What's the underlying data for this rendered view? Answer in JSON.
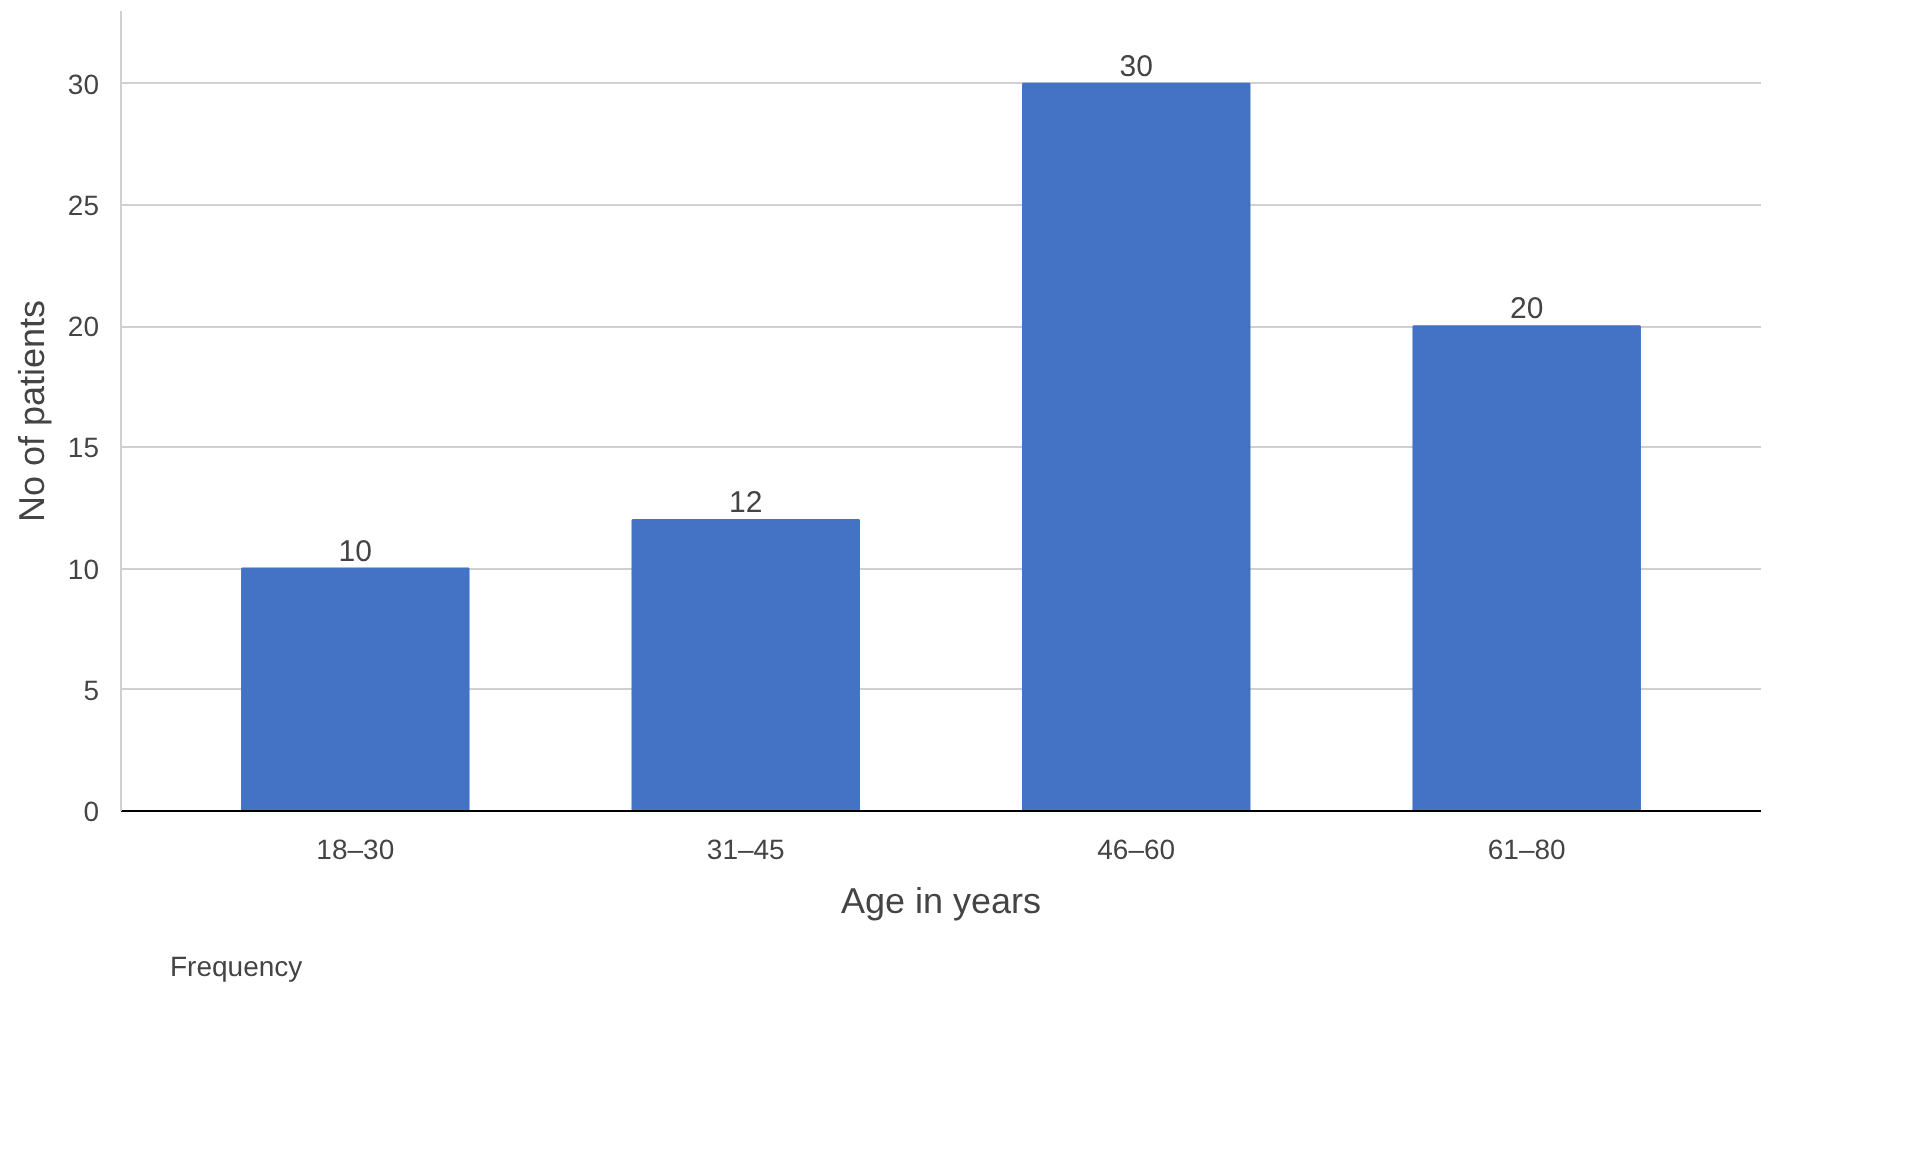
{
  "chart_data": {
    "type": "bar",
    "categories": [
      "18–30",
      "31–45",
      "46–60",
      "61–80"
    ],
    "series": [
      {
        "name": "Frequency",
        "color": "#4472c4",
        "values": [
          10,
          12,
          30,
          20
        ]
      }
    ],
    "xlabel": "Age in years",
    "ylabel": "No of patients",
    "ylim": [
      0,
      33
    ],
    "yticks": [
      0,
      5,
      10,
      15,
      20,
      25,
      30
    ],
    "grid": "y",
    "legend": "bottom left",
    "data_labels": true
  }
}
